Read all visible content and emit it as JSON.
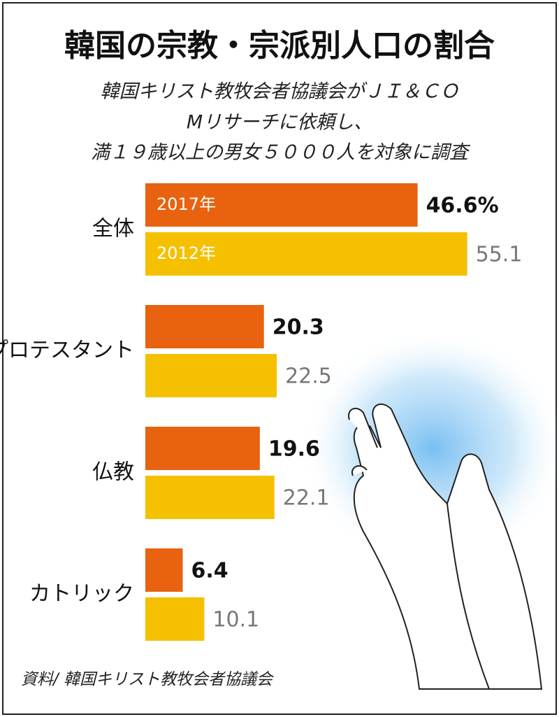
{
  "chart_data": {
    "type": "hbar",
    "title": "韓国の宗教・宗派別人口の割合",
    "subtitle": [
      "韓国キリスト教牧会者協議会がＪＩ＆ＣＯ",
      "Mリサーチに依頼し、",
      "満１９歳以上の男女５０００人を対象に調査"
    ],
    "categories": [
      "全体",
      "プロテスタント",
      "仏教",
      "カトリック"
    ],
    "series": [
      {
        "name": "2017年",
        "color": "#e8620f",
        "values": [
          46.6,
          20.3,
          19.6,
          6.4
        ],
        "value_labels": [
          "46.6%",
          "20.3",
          "19.6",
          "6.4"
        ]
      },
      {
        "name": "2012年",
        "color": "#f5c000",
        "values": [
          55.1,
          22.5,
          22.1,
          10.1
        ]
      }
    ],
    "source": "資料/ 韓国キリスト教牧会者協議会"
  }
}
